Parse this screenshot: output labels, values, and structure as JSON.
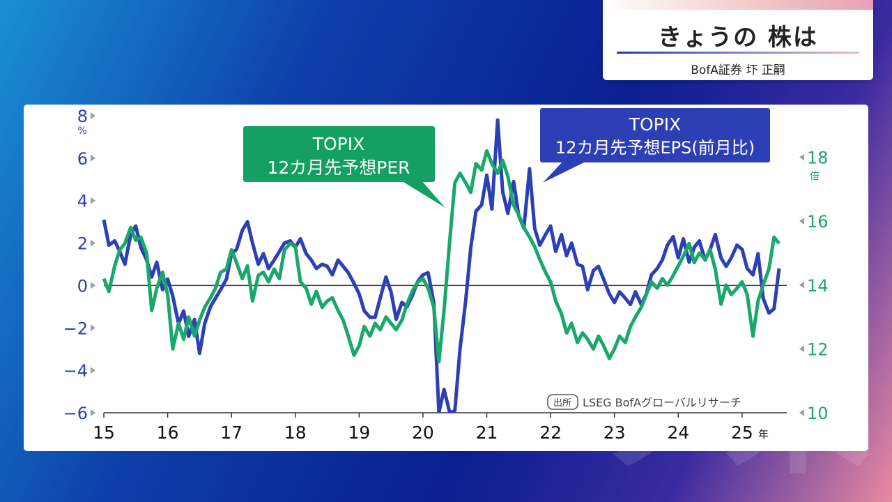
{
  "header": {
    "title": "きょうの 株は",
    "subtitle": "BofA証券 圷 正嗣"
  },
  "watermark": "ソ未",
  "colors": {
    "eps_series": "#2d3fb5",
    "per_series": "#1aa86a",
    "zero_line": "#444444",
    "eps_callout_bg": "#2d3fb5",
    "per_callout_bg": "#14a062"
  },
  "chart_data": {
    "type": "line",
    "x_tick_labels": [
      "15",
      "16",
      "17",
      "18",
      "19",
      "20",
      "21",
      "22",
      "23",
      "24",
      "25"
    ],
    "x_unit": "年",
    "x_range": [
      2015,
      2025.7
    ],
    "left_axis": {
      "unit": "%",
      "ticks": [
        8,
        6,
        4,
        2,
        0,
        -2,
        -4,
        -6
      ],
      "range": [
        -6,
        8
      ]
    },
    "right_axis": {
      "unit": "倍",
      "ticks": [
        18,
        16,
        14,
        12,
        10
      ],
      "range": [
        10,
        19.3
      ]
    },
    "zero_line_at": 0,
    "source_note": "出所 LSEG BofAグローバルリサーチ",
    "callouts": [
      {
        "series": "per",
        "lines": [
          "TOPIX",
          "12カ月先予想PER"
        ]
      },
      {
        "series": "eps",
        "lines": [
          "TOPIX",
          "12カ月先予想EPS(前月比)"
        ]
      }
    ],
    "series": [
      {
        "id": "eps",
        "axis": "left",
        "points": [
          [
            2015.0,
            3.1
          ],
          [
            2015.08,
            1.9
          ],
          [
            2015.17,
            2.1
          ],
          [
            2015.25,
            1.6
          ],
          [
            2015.33,
            1.0
          ],
          [
            2015.42,
            2.4
          ],
          [
            2015.5,
            2.8
          ],
          [
            2015.58,
            1.8
          ],
          [
            2015.67,
            1.2
          ],
          [
            2015.75,
            0.4
          ],
          [
            2015.83,
            1.1
          ],
          [
            2015.92,
            -0.2
          ],
          [
            2016.0,
            0.3
          ],
          [
            2016.08,
            -0.5
          ],
          [
            2016.17,
            -1.8
          ],
          [
            2016.25,
            -1.2
          ],
          [
            2016.33,
            -2.4
          ],
          [
            2016.42,
            -1.6
          ],
          [
            2016.5,
            -3.2
          ],
          [
            2016.58,
            -1.8
          ],
          [
            2016.67,
            -1.0
          ],
          [
            2016.75,
            -0.6
          ],
          [
            2016.83,
            -0.2
          ],
          [
            2016.92,
            0.3
          ],
          [
            2017.0,
            1.5
          ],
          [
            2017.08,
            1.7
          ],
          [
            2017.17,
            2.6
          ],
          [
            2017.25,
            3.0
          ],
          [
            2017.33,
            2.0
          ],
          [
            2017.42,
            1.0
          ],
          [
            2017.5,
            1.5
          ],
          [
            2017.58,
            0.8
          ],
          [
            2017.67,
            1.2
          ],
          [
            2017.75,
            1.6
          ],
          [
            2017.83,
            2.0
          ],
          [
            2017.92,
            2.1
          ],
          [
            2018.0,
            1.8
          ],
          [
            2018.08,
            2.2
          ],
          [
            2018.17,
            1.5
          ],
          [
            2018.25,
            1.2
          ],
          [
            2018.33,
            0.8
          ],
          [
            2018.42,
            1.0
          ],
          [
            2018.5,
            0.9
          ],
          [
            2018.58,
            0.5
          ],
          [
            2018.67,
            1.2
          ],
          [
            2018.75,
            0.9
          ],
          [
            2018.83,
            0.6
          ],
          [
            2018.92,
            0.1
          ],
          [
            2019.0,
            -0.4
          ],
          [
            2019.08,
            -1.2
          ],
          [
            2019.17,
            -1.5
          ],
          [
            2019.25,
            -1.5
          ],
          [
            2019.33,
            -0.6
          ],
          [
            2019.42,
            0.4
          ],
          [
            2019.5,
            -0.3
          ],
          [
            2019.58,
            -1.6
          ],
          [
            2019.67,
            -0.8
          ],
          [
            2019.75,
            -1.0
          ],
          [
            2019.83,
            -0.5
          ],
          [
            2019.92,
            0.2
          ],
          [
            2020.0,
            0.5
          ],
          [
            2020.08,
            0.6
          ],
          [
            2020.17,
            -0.8
          ],
          [
            2020.25,
            -6.0
          ],
          [
            2020.33,
            -4.9
          ],
          [
            2020.42,
            -6.0
          ],
          [
            2020.5,
            -5.9
          ],
          [
            2020.58,
            -3.0
          ],
          [
            2020.67,
            -0.7
          ],
          [
            2020.75,
            1.8
          ],
          [
            2020.83,
            3.5
          ],
          [
            2020.92,
            3.8
          ],
          [
            2021.0,
            5.2
          ],
          [
            2021.08,
            3.6
          ],
          [
            2021.17,
            7.8
          ],
          [
            2021.25,
            4.4
          ],
          [
            2021.33,
            3.4
          ],
          [
            2021.42,
            4.9
          ],
          [
            2021.5,
            3.3
          ],
          [
            2021.58,
            2.7
          ],
          [
            2021.67,
            5.5
          ],
          [
            2021.75,
            2.7
          ],
          [
            2021.83,
            1.9
          ],
          [
            2021.92,
            2.4
          ],
          [
            2022.0,
            2.8
          ],
          [
            2022.08,
            1.6
          ],
          [
            2022.17,
            2.4
          ],
          [
            2022.25,
            1.4
          ],
          [
            2022.33,
            2.0
          ],
          [
            2022.42,
            1.0
          ],
          [
            2022.5,
            0.9
          ],
          [
            2022.58,
            -0.2
          ],
          [
            2022.67,
            0.7
          ],
          [
            2022.75,
            0.9
          ],
          [
            2022.83,
            0.3
          ],
          [
            2022.92,
            -0.4
          ],
          [
            2023.0,
            -0.8
          ],
          [
            2023.08,
            -0.3
          ],
          [
            2023.17,
            -0.6
          ],
          [
            2023.25,
            -0.9
          ],
          [
            2023.33,
            -0.3
          ],
          [
            2023.42,
            -0.9
          ],
          [
            2023.5,
            -0.4
          ],
          [
            2023.58,
            0.5
          ],
          [
            2023.67,
            0.8
          ],
          [
            2023.75,
            1.2
          ],
          [
            2023.83,
            1.9
          ],
          [
            2023.92,
            2.3
          ],
          [
            2024.0,
            1.3
          ],
          [
            2024.08,
            2.2
          ],
          [
            2024.17,
            1.1
          ],
          [
            2024.25,
            1.8
          ],
          [
            2024.33,
            2.1
          ],
          [
            2024.42,
            1.2
          ],
          [
            2024.5,
            1.7
          ],
          [
            2024.58,
            2.4
          ],
          [
            2024.67,
            1.3
          ],
          [
            2024.75,
            0.9
          ],
          [
            2024.83,
            1.3
          ],
          [
            2024.92,
            1.9
          ],
          [
            2025.0,
            1.7
          ],
          [
            2025.08,
            0.8
          ],
          [
            2025.17,
            0.5
          ],
          [
            2025.25,
            1.5
          ],
          [
            2025.33,
            -0.6
          ],
          [
            2025.42,
            -1.3
          ],
          [
            2025.5,
            -1.1
          ],
          [
            2025.58,
            0.8
          ]
        ]
      },
      {
        "id": "per",
        "axis": "right",
        "points": [
          [
            2015.0,
            14.2
          ],
          [
            2015.08,
            13.8
          ],
          [
            2015.17,
            14.6
          ],
          [
            2015.25,
            15.1
          ],
          [
            2015.33,
            15.3
          ],
          [
            2015.42,
            15.8
          ],
          [
            2015.5,
            15.4
          ],
          [
            2015.58,
            15.5
          ],
          [
            2015.67,
            15.0
          ],
          [
            2015.75,
            13.2
          ],
          [
            2015.83,
            13.9
          ],
          [
            2015.92,
            14.4
          ],
          [
            2016.0,
            13.7
          ],
          [
            2016.08,
            12.0
          ],
          [
            2016.17,
            12.8
          ],
          [
            2016.25,
            12.3
          ],
          [
            2016.33,
            13.0
          ],
          [
            2016.42,
            12.4
          ],
          [
            2016.5,
            12.9
          ],
          [
            2016.58,
            13.3
          ],
          [
            2016.67,
            13.6
          ],
          [
            2016.75,
            13.9
          ],
          [
            2016.83,
            14.4
          ],
          [
            2016.92,
            14.5
          ],
          [
            2017.0,
            15.1
          ],
          [
            2017.08,
            14.7
          ],
          [
            2017.17,
            14.2
          ],
          [
            2017.25,
            14.6
          ],
          [
            2017.33,
            13.5
          ],
          [
            2017.42,
            14.3
          ],
          [
            2017.5,
            14.4
          ],
          [
            2017.58,
            14.1
          ],
          [
            2017.67,
            14.5
          ],
          [
            2017.75,
            14.2
          ],
          [
            2017.83,
            15.1
          ],
          [
            2017.92,
            15.3
          ],
          [
            2018.0,
            15.2
          ],
          [
            2018.08,
            14.1
          ],
          [
            2018.17,
            13.9
          ],
          [
            2018.25,
            13.4
          ],
          [
            2018.33,
            13.8
          ],
          [
            2018.42,
            13.3
          ],
          [
            2018.5,
            13.5
          ],
          [
            2018.58,
            13.6
          ],
          [
            2018.67,
            13.2
          ],
          [
            2018.75,
            12.9
          ],
          [
            2018.83,
            12.4
          ],
          [
            2018.92,
            11.8
          ],
          [
            2019.0,
            12.1
          ],
          [
            2019.08,
            12.7
          ],
          [
            2019.17,
            12.4
          ],
          [
            2019.25,
            12.8
          ],
          [
            2019.33,
            12.6
          ],
          [
            2019.42,
            13.0
          ],
          [
            2019.5,
            12.8
          ],
          [
            2019.58,
            12.6
          ],
          [
            2019.67,
            12.9
          ],
          [
            2019.75,
            13.4
          ],
          [
            2019.83,
            13.8
          ],
          [
            2019.92,
            14.1
          ],
          [
            2020.0,
            14.2
          ],
          [
            2020.08,
            13.9
          ],
          [
            2020.17,
            13.3
          ],
          [
            2020.25,
            11.6
          ],
          [
            2020.33,
            13.2
          ],
          [
            2020.42,
            15.4
          ],
          [
            2020.5,
            17.2
          ],
          [
            2020.58,
            17.5
          ],
          [
            2020.67,
            17.2
          ],
          [
            2020.75,
            16.9
          ],
          [
            2020.83,
            17.8
          ],
          [
            2020.92,
            17.6
          ],
          [
            2021.0,
            18.2
          ],
          [
            2021.08,
            17.8
          ],
          [
            2021.17,
            17.5
          ],
          [
            2021.25,
            17.9
          ],
          [
            2021.33,
            17.4
          ],
          [
            2021.42,
            16.5
          ],
          [
            2021.5,
            16.2
          ],
          [
            2021.58,
            15.8
          ],
          [
            2021.67,
            15.5
          ],
          [
            2021.75,
            15.2
          ],
          [
            2021.83,
            14.8
          ],
          [
            2021.92,
            14.4
          ],
          [
            2022.0,
            14.1
          ],
          [
            2022.08,
            13.5
          ],
          [
            2022.17,
            13.1
          ],
          [
            2022.25,
            12.5
          ],
          [
            2022.33,
            12.8
          ],
          [
            2022.42,
            12.2
          ],
          [
            2022.5,
            12.5
          ],
          [
            2022.58,
            12.3
          ],
          [
            2022.67,
            12.0
          ],
          [
            2022.75,
            12.4
          ],
          [
            2022.83,
            12.1
          ],
          [
            2022.92,
            11.7
          ],
          [
            2023.0,
            12.0
          ],
          [
            2023.08,
            12.4
          ],
          [
            2023.17,
            12.2
          ],
          [
            2023.25,
            12.7
          ],
          [
            2023.33,
            13.0
          ],
          [
            2023.42,
            13.3
          ],
          [
            2023.5,
            13.7
          ],
          [
            2023.58,
            14.1
          ],
          [
            2023.67,
            13.9
          ],
          [
            2023.75,
            14.2
          ],
          [
            2023.83,
            14.0
          ],
          [
            2023.92,
            14.3
          ],
          [
            2024.0,
            14.6
          ],
          [
            2024.08,
            14.9
          ],
          [
            2024.17,
            15.3
          ],
          [
            2024.25,
            14.7
          ],
          [
            2024.33,
            15.0
          ],
          [
            2024.42,
            14.8
          ],
          [
            2024.5,
            15.1
          ],
          [
            2024.58,
            14.5
          ],
          [
            2024.67,
            13.4
          ],
          [
            2024.75,
            14.0
          ],
          [
            2024.83,
            13.7
          ],
          [
            2024.92,
            13.9
          ],
          [
            2025.0,
            14.1
          ],
          [
            2025.08,
            13.7
          ],
          [
            2025.17,
            12.4
          ],
          [
            2025.25,
            13.5
          ],
          [
            2025.33,
            14.0
          ],
          [
            2025.42,
            14.5
          ],
          [
            2025.5,
            15.5
          ],
          [
            2025.58,
            15.3
          ]
        ]
      }
    ]
  }
}
